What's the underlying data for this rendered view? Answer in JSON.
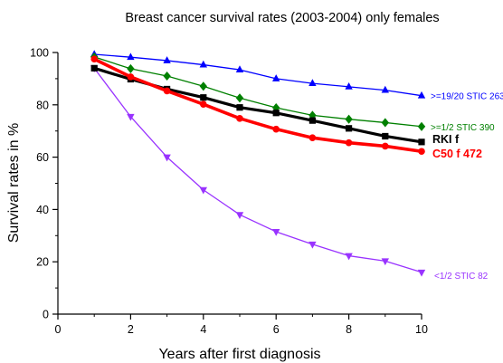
{
  "chart_data": {
    "type": "line",
    "title": "Breast cancer survival rates (2003-2004) only females",
    "xlabel": "Years after first diagnosis",
    "ylabel": "Survival rates in %",
    "xlim": [
      0,
      10
    ],
    "ylim": [
      0,
      100
    ],
    "x_ticks": [
      0,
      2,
      4,
      6,
      8,
      10
    ],
    "y_ticks": [
      0,
      20,
      40,
      60,
      80,
      100
    ],
    "grid": false,
    "x": [
      1,
      2,
      3,
      4,
      5,
      6,
      7,
      8,
      9,
      10
    ],
    "series": [
      {
        "name": ">=19/20 STIC 263",
        "color": "#0000ff",
        "marker": "triangle-up",
        "values": [
          99.3,
          98.2,
          96.9,
          95.3,
          93.4,
          90.0,
          88.2,
          86.9,
          85.6,
          83.5
        ]
      },
      {
        "name": ">=1/2 STIC 390",
        "color": "#008000",
        "marker": "diamond",
        "values": [
          98.3,
          93.8,
          91.0,
          87.1,
          82.6,
          78.9,
          76.0,
          74.5,
          73.2,
          71.7
        ]
      },
      {
        "name": "RKI f",
        "color": "#000000",
        "marker": "square",
        "values": [
          94.0,
          89.8,
          86.0,
          82.8,
          79.0,
          76.9,
          74.0,
          71.0,
          68.0,
          65.8
        ]
      },
      {
        "name": "C50 f 472",
        "color": "#ff0000",
        "marker": "circle",
        "values": [
          97.5,
          90.7,
          85.3,
          80.2,
          74.8,
          70.7,
          67.4,
          65.5,
          64.2,
          62.2
        ]
      },
      {
        "name": "<1/2 STIC 82",
        "color": "#9933ff",
        "marker": "triangle-down",
        "values": [
          94.0,
          75.5,
          60.0,
          47.5,
          38.0,
          31.5,
          26.7,
          22.3,
          20.3,
          16.0
        ]
      }
    ]
  }
}
